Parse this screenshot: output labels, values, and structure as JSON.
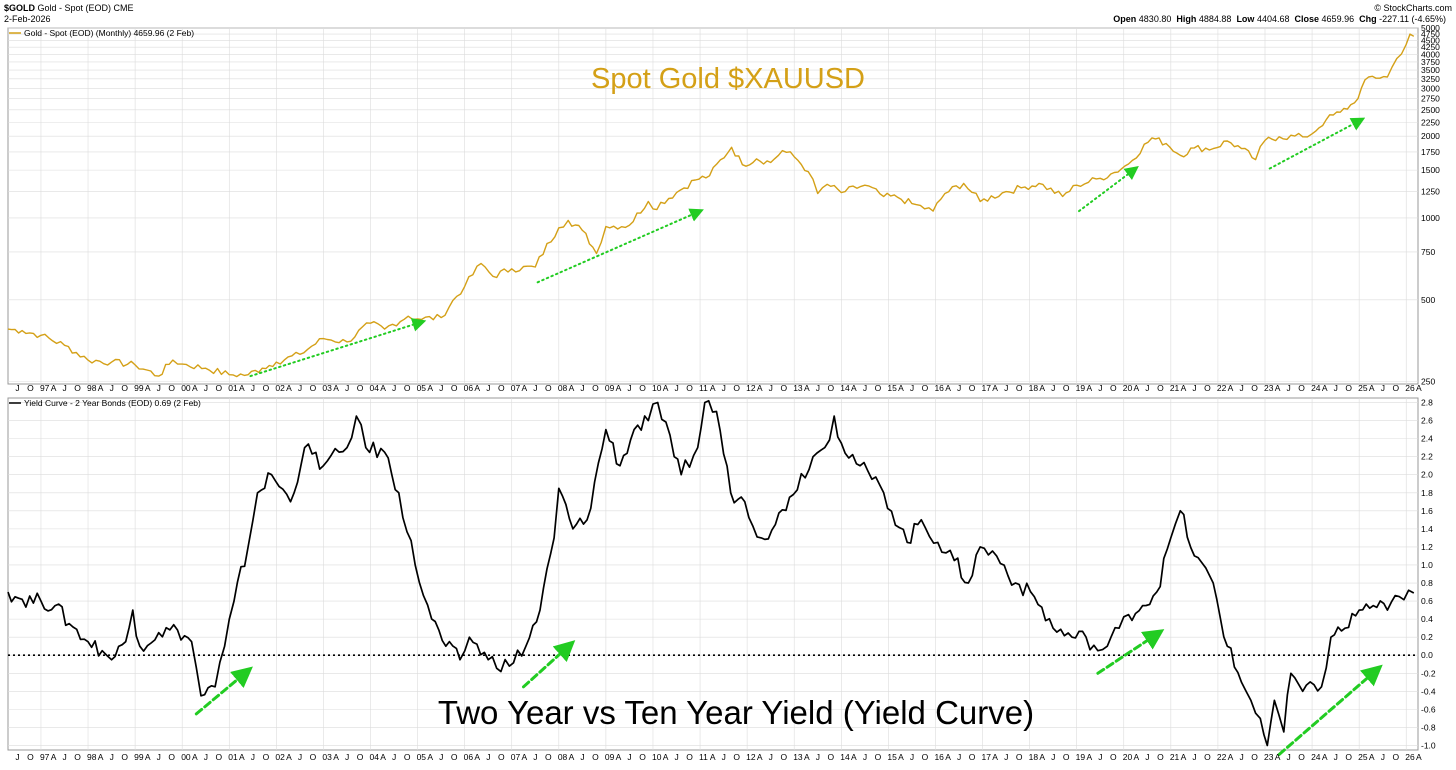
{
  "header": {
    "symbol": "$GOLD",
    "description": "Gold - Spot (EOD) CME",
    "date": "2-Feb-2026",
    "brand": "© StockCharts.com",
    "open_label": "Open",
    "open": "4830.80",
    "high_label": "High",
    "high": "4884.88",
    "low_label": "Low",
    "low": "4404.68",
    "close_label": "Close",
    "close": "4659.96",
    "chg_label": "Chg",
    "chg": "-227.11 (-4.65%)"
  },
  "colors": {
    "gold": "#d4a017",
    "yield": "#000000",
    "arrow": "#22cc22",
    "grid": "#dcdcdc"
  },
  "chart_data": [
    {
      "type": "line",
      "legend": "Gold - Spot (EOD) (Monthly) 4659.96 (2 Feb)",
      "annotation": "Spot Gold $XAUUSD",
      "scale": "log",
      "ylim": [
        245,
        5000
      ],
      "y_ticks": [
        250,
        500,
        750,
        1000,
        1250,
        1500,
        1750,
        2000,
        2250,
        2500,
        2750,
        3000,
        3250,
        3500,
        3750,
        4000,
        4250,
        4500,
        4750,
        5000
      ],
      "y_tick_labels_shown": [
        "250",
        "500",
        "750",
        "1000",
        "1250",
        "1500",
        "1750",
        "2000",
        "2250",
        "2500",
        "2750",
        "3000",
        "3250",
        "3500",
        "3750",
        "4000",
        "4250",
        "4500",
        "4750",
        "5000"
      ],
      "x_range": [
        1996.3,
        2026.25
      ],
      "series": [
        {
          "points": [
            [
              1996.3,
              390
            ],
            [
              1996.6,
              385
            ],
            [
              1997.0,
              370
            ],
            [
              1997.5,
              340
            ],
            [
              1998.0,
              300
            ],
            [
              1998.5,
              295
            ],
            [
              1999.0,
              288
            ],
            [
              1999.5,
              262
            ],
            [
              1999.8,
              300
            ],
            [
              2000.0,
              290
            ],
            [
              2000.5,
              280
            ],
            [
              2001.0,
              265
            ],
            [
              2001.4,
              265
            ],
            [
              2001.7,
              280
            ],
            [
              2002.0,
              295
            ],
            [
              2002.5,
              315
            ],
            [
              2003.0,
              360
            ],
            [
              2003.5,
              350
            ],
            [
              2004.0,
              410
            ],
            [
              2004.3,
              390
            ],
            [
              2004.8,
              435
            ],
            [
              2005.0,
              425
            ],
            [
              2005.5,
              430
            ],
            [
              2006.0,
              560
            ],
            [
              2006.35,
              680
            ],
            [
              2006.6,
              610
            ],
            [
              2007.0,
              650
            ],
            [
              2007.5,
              660
            ],
            [
              2008.0,
              920
            ],
            [
              2008.2,
              980
            ],
            [
              2008.5,
              900
            ],
            [
              2008.8,
              740
            ],
            [
              2009.0,
              930
            ],
            [
              2009.5,
              940
            ],
            [
              2009.9,
              1150
            ],
            [
              2010.0,
              1080
            ],
            [
              2010.5,
              1240
            ],
            [
              2010.9,
              1380
            ],
            [
              2011.2,
              1430
            ],
            [
              2011.67,
              1820
            ],
            [
              2011.9,
              1570
            ],
            [
              2012.2,
              1650
            ],
            [
              2012.5,
              1600
            ],
            [
              2012.75,
              1770
            ],
            [
              2013.0,
              1680
            ],
            [
              2013.3,
              1480
            ],
            [
              2013.5,
              1230
            ],
            [
              2013.7,
              1330
            ],
            [
              2014.0,
              1240
            ],
            [
              2014.5,
              1320
            ],
            [
              2014.9,
              1200
            ],
            [
              2015.2,
              1190
            ],
            [
              2015.5,
              1130
            ],
            [
              2015.95,
              1060
            ],
            [
              2016.2,
              1230
            ],
            [
              2016.6,
              1340
            ],
            [
              2016.95,
              1150
            ],
            [
              2017.5,
              1250
            ],
            [
              2017.9,
              1300
            ],
            [
              2018.2,
              1340
            ],
            [
              2018.7,
              1200
            ],
            [
              2019.0,
              1320
            ],
            [
              2019.5,
              1400
            ],
            [
              2019.8,
              1470
            ],
            [
              2020.1,
              1580
            ],
            [
              2020.6,
              1970
            ],
            [
              2020.9,
              1880
            ],
            [
              2021.2,
              1700
            ],
            [
              2021.5,
              1810
            ],
            [
              2021.9,
              1800
            ],
            [
              2022.2,
              1920
            ],
            [
              2022.5,
              1800
            ],
            [
              2022.8,
              1640
            ],
            [
              2023.0,
              1930
            ],
            [
              2023.3,
              1990
            ],
            [
              2023.8,
              1990
            ],
            [
              2024.0,
              2040
            ],
            [
              2024.3,
              2300
            ],
            [
              2024.6,
              2450
            ],
            [
              2024.9,
              2650
            ],
            [
              2025.2,
              3300
            ],
            [
              2025.6,
              3300
            ],
            [
              2025.8,
              3860
            ],
            [
              2026.0,
              4350
            ],
            [
              2026.08,
              4750
            ],
            [
              2026.16,
              4659.96
            ]
          ]
        }
      ]
    },
    {
      "type": "line",
      "legend": "Yield Curve - 2 Year Bonds (EOD) 0.69 (2 Feb)",
      "annotation": "Two Year vs Ten Year Yield (Yield Curve)",
      "ylim": [
        -1.05,
        2.85
      ],
      "y_ticks": [
        -1.0,
        -0.8,
        -0.6,
        -0.4,
        -0.2,
        0.0,
        0.2,
        0.4,
        0.6,
        0.8,
        1.0,
        1.2,
        1.4,
        1.6,
        1.8,
        2.0,
        2.2,
        2.4,
        2.6,
        2.8
      ],
      "y_tick_labels": [
        "-1.0",
        "-0.8",
        "-0.6",
        "-0.4",
        "-0.2",
        "0.0",
        "0.2",
        "0.4",
        "0.6",
        "0.8",
        "1.0",
        "1.2",
        "1.4",
        "1.6",
        "1.8",
        "2.0",
        "2.2",
        "2.4",
        "2.6",
        "2.8"
      ],
      "reference_line": 0.0,
      "x_range": [
        1996.3,
        2026.25
      ],
      "series": [
        {
          "points": [
            [
              1996.3,
              0.7
            ],
            [
              1996.6,
              0.62
            ],
            [
              1997.0,
              0.6
            ],
            [
              1997.3,
              0.55
            ],
            [
              1997.6,
              0.35
            ],
            [
              1998.0,
              0.15
            ],
            [
              1998.3,
              0.05
            ],
            [
              1998.5,
              -0.05
            ],
            [
              1998.8,
              0.15
            ],
            [
              1998.95,
              0.5
            ],
            [
              1999.1,
              0.1
            ],
            [
              1999.5,
              0.25
            ],
            [
              1999.9,
              0.28
            ],
            [
              2000.2,
              0.15
            ],
            [
              2000.4,
              -0.45
            ],
            [
              2000.7,
              -0.35
            ],
            [
              2000.9,
              0.1
            ],
            [
              2001.1,
              0.6
            ],
            [
              2001.4,
              1.2
            ],
            [
              2001.6,
              1.8
            ],
            [
              2001.9,
              2.0
            ],
            [
              2002.3,
              1.7
            ],
            [
              2002.6,
              2.3
            ],
            [
              2003.0,
              2.1
            ],
            [
              2003.5,
              2.3
            ],
            [
              2003.7,
              2.65
            ],
            [
              2003.9,
              2.3
            ],
            [
              2004.3,
              2.25
            ],
            [
              2004.6,
              1.8
            ],
            [
              2004.95,
              1.0
            ],
            [
              2005.3,
              0.4
            ],
            [
              2005.6,
              0.1
            ],
            [
              2005.9,
              -0.05
            ],
            [
              2006.1,
              0.2
            ],
            [
              2006.5,
              -0.05
            ],
            [
              2006.95,
              -0.12
            ],
            [
              2007.3,
              0.1
            ],
            [
              2007.6,
              0.5
            ],
            [
              2007.9,
              1.3
            ],
            [
              2008.0,
              1.85
            ],
            [
              2008.3,
              1.4
            ],
            [
              2008.6,
              1.5
            ],
            [
              2009.0,
              2.5
            ],
            [
              2009.3,
              2.1
            ],
            [
              2009.6,
              2.5
            ],
            [
              2009.9,
              2.6
            ],
            [
              2010.1,
              2.8
            ],
            [
              2010.45,
              2.2
            ],
            [
              2010.6,
              2.0
            ],
            [
              2010.95,
              2.3
            ],
            [
              2011.1,
              2.8
            ],
            [
              2011.35,
              2.7
            ],
            [
              2011.65,
              1.8
            ],
            [
              2011.95,
              1.7
            ],
            [
              2012.3,
              1.3
            ],
            [
              2012.6,
              1.45
            ],
            [
              2012.9,
              1.75
            ],
            [
              2013.4,
              2.2
            ],
            [
              2013.65,
              2.3
            ],
            [
              2013.85,
              2.65
            ],
            [
              2014.0,
              2.35
            ],
            [
              2014.4,
              2.1
            ],
            [
              2014.9,
              1.8
            ],
            [
              2015.4,
              1.25
            ],
            [
              2015.7,
              1.5
            ],
            [
              2016.05,
              1.25
            ],
            [
              2016.4,
              1.05
            ],
            [
              2016.7,
              0.8
            ],
            [
              2016.95,
              1.2
            ],
            [
              2017.3,
              1.1
            ],
            [
              2017.7,
              0.8
            ],
            [
              2018.1,
              0.65
            ],
            [
              2018.5,
              0.3
            ],
            [
              2018.9,
              0.2
            ],
            [
              2019.2,
              0.2
            ],
            [
              2019.45,
              0.05
            ],
            [
              2019.65,
              0.1
            ],
            [
              2019.9,
              0.3
            ],
            [
              2020.1,
              0.45
            ],
            [
              2020.4,
              0.55
            ],
            [
              2020.7,
              0.7
            ],
            [
              2021.0,
              1.3
            ],
            [
              2021.2,
              1.6
            ],
            [
              2021.5,
              1.1
            ],
            [
              2021.9,
              0.8
            ],
            [
              2022.2,
              0.1
            ],
            [
              2022.5,
              -0.3
            ],
            [
              2022.7,
              -0.5
            ],
            [
              2022.9,
              -0.7
            ],
            [
              2023.05,
              -1.0
            ],
            [
              2023.2,
              -0.5
            ],
            [
              2023.4,
              -0.85
            ],
            [
              2023.55,
              -0.2
            ],
            [
              2023.8,
              -0.4
            ],
            [
              2024.2,
              -0.35
            ],
            [
              2024.4,
              0.2
            ],
            [
              2024.7,
              0.3
            ],
            [
              2025.0,
              0.5
            ],
            [
              2025.3,
              0.55
            ],
            [
              2025.6,
              0.5
            ],
            [
              2025.85,
              0.65
            ],
            [
              2026.05,
              0.72
            ],
            [
              2026.16,
              0.69
            ]
          ]
        }
      ]
    }
  ],
  "x_axis": {
    "years": [
      {
        "label": "97",
        "year": 1997
      },
      {
        "label": "98",
        "year": 1998
      },
      {
        "label": "99",
        "year": 1999
      },
      {
        "label": "00",
        "year": 2000
      },
      {
        "label": "01",
        "year": 2001
      },
      {
        "label": "02",
        "year": 2002
      },
      {
        "label": "03",
        "year": 2003
      },
      {
        "label": "04",
        "year": 2004
      },
      {
        "label": "05",
        "year": 2005
      },
      {
        "label": "06",
        "year": 2006
      },
      {
        "label": "07",
        "year": 2007
      },
      {
        "label": "08",
        "year": 2008
      },
      {
        "label": "09",
        "year": 2009
      },
      {
        "label": "10",
        "year": 2010
      },
      {
        "label": "11",
        "year": 2011
      },
      {
        "label": "12",
        "year": 2012
      },
      {
        "label": "13",
        "year": 2013
      },
      {
        "label": "14",
        "year": 2014
      },
      {
        "label": "15",
        "year": 2015
      },
      {
        "label": "16",
        "year": 2016
      },
      {
        "label": "17",
        "year": 2017
      },
      {
        "label": "18",
        "year": 2018
      },
      {
        "label": "19",
        "year": 2019
      },
      {
        "label": "20",
        "year": 2020
      },
      {
        "label": "21",
        "year": 2021
      },
      {
        "label": "22",
        "year": 2022
      },
      {
        "label": "23",
        "year": 2023
      },
      {
        "label": "24",
        "year": 2024
      },
      {
        "label": "25",
        "year": 2025
      },
      {
        "label": "26",
        "year": 2026
      }
    ],
    "month_labels": [
      "A",
      "J",
      "O"
    ]
  },
  "arrows": [
    {
      "panel": 0,
      "style": "dotted",
      "from": [
        2001.45,
        262
      ],
      "to": [
        2005.1,
        415
      ]
    },
    {
      "panel": 0,
      "style": "dotted",
      "from": [
        2007.55,
        580
      ],
      "to": [
        2011.0,
        1060
      ]
    },
    {
      "panel": 0,
      "style": "dotted",
      "from": [
        2019.05,
        1060
      ],
      "to": [
        2020.25,
        1520
      ]
    },
    {
      "panel": 0,
      "style": "dotted",
      "from": [
        2023.1,
        1520
      ],
      "to": [
        2025.05,
        2300
      ]
    },
    {
      "panel": 1,
      "style": "dashed",
      "from": [
        2000.3,
        -0.65
      ],
      "to": [
        2001.4,
        -0.17
      ]
    },
    {
      "panel": 1,
      "style": "dashed",
      "from": [
        2007.25,
        -0.35
      ],
      "to": [
        2008.25,
        0.12
      ]
    },
    {
      "panel": 1,
      "style": "dashed",
      "from": [
        2019.45,
        -0.2
      ],
      "to": [
        2020.75,
        0.25
      ]
    },
    {
      "panel": 1,
      "style": "dashed",
      "from": [
        2023.3,
        -1.1
      ],
      "to": [
        2025.4,
        -0.15
      ]
    }
  ]
}
